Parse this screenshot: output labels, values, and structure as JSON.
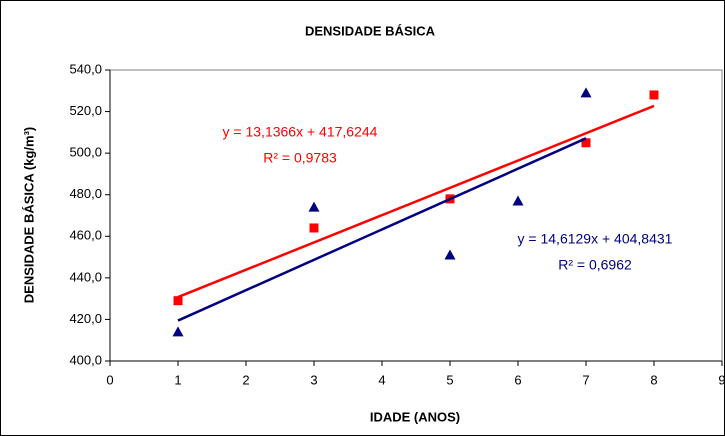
{
  "chart_data": {
    "type": "scatter",
    "title": "DENSIDADE BÁSICA",
    "xlabel": "IDADE (ANOS)",
    "ylabel": "DENSIDADE BÁSICA (kg/m³)",
    "xlim": [
      0,
      9
    ],
    "xticks": [
      0,
      1,
      2,
      3,
      4,
      5,
      6,
      7,
      8,
      9
    ],
    "ylim": [
      400,
      540
    ],
    "yticks": [
      {
        "value": 400,
        "label": "400,0"
      },
      {
        "value": 420,
        "label": "420,0"
      },
      {
        "value": 440,
        "label": "440,0"
      },
      {
        "value": 460,
        "label": "460,0"
      },
      {
        "value": 480,
        "label": "480,0"
      },
      {
        "value": 500,
        "label": "500,0"
      },
      {
        "value": 520,
        "label": "520,0"
      },
      {
        "value": 540,
        "label": "540,0"
      }
    ],
    "grid": false,
    "series": [
      {
        "color": "#ff0000",
        "marker": "square",
        "x": [
          1,
          3,
          5,
          7,
          8
        ],
        "values": [
          429,
          464,
          478,
          505,
          528
        ],
        "trendline": {
          "slope": 13.1366,
          "intercept": 417.6244,
          "x_range": [
            1,
            8
          ],
          "equation": "y = 13,1366x + 417,6244",
          "r2": "R² = 0,9783"
        }
      },
      {
        "color": "#000080",
        "marker": "triangle",
        "x": [
          1,
          3,
          5,
          6,
          7
        ],
        "values": [
          414,
          474,
          451,
          477,
          529
        ],
        "trendline": {
          "slope": 14.6129,
          "intercept": 404.8431,
          "x_range": [
            1,
            7
          ],
          "equation": "y = 14,6129x + 404,8431",
          "r2": "R² = 0,6962"
        }
      }
    ]
  }
}
